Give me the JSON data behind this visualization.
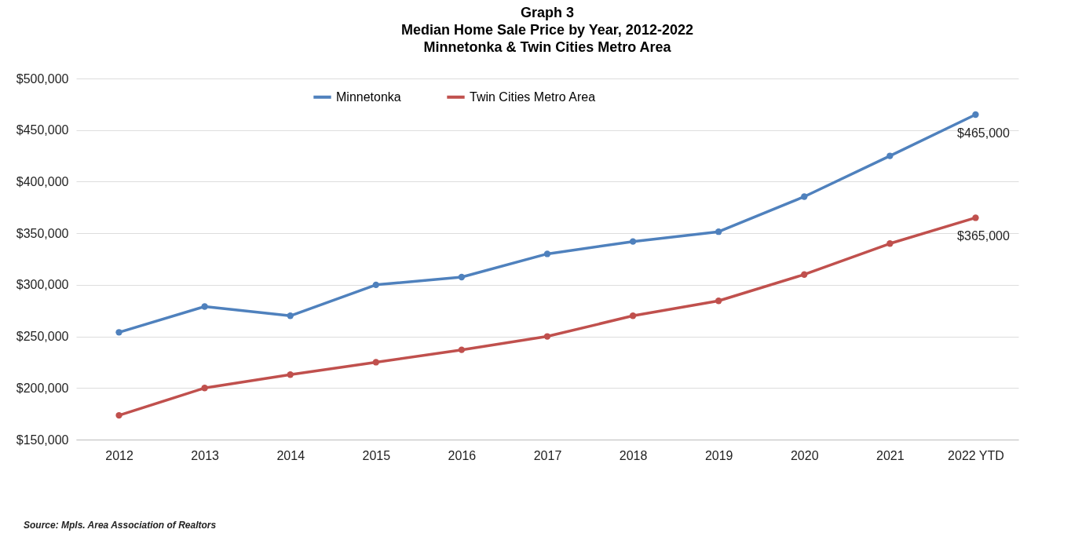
{
  "chart_data": {
    "type": "line",
    "title": "Graph 3\nMedian Home Sale Price by Year, 2012-2022\nMinnetonka & Twin Cities Metro Area",
    "categories": [
      "2012",
      "2013",
      "2014",
      "2015",
      "2016",
      "2017",
      "2018",
      "2019",
      "2020",
      "2021",
      "2022 YTD"
    ],
    "series": [
      {
        "name": "Minnetonka",
        "color": "#4f81bd",
        "values": [
          254000,
          279000,
          270000,
          300000,
          307500,
          330000,
          342000,
          351500,
          385500,
          425000,
          465000
        ],
        "value_labels": [
          null,
          null,
          null,
          null,
          null,
          null,
          null,
          null,
          null,
          null,
          "$465,000"
        ]
      },
      {
        "name": "Twin Cities Metro Area",
        "color": "#c0504d",
        "values": [
          173500,
          200000,
          213000,
          225000,
          237000,
          250000,
          270000,
          284500,
          310000,
          340000,
          365000
        ],
        "value_labels": [
          null,
          null,
          null,
          null,
          null,
          null,
          null,
          null,
          null,
          null,
          "$365,000"
        ]
      }
    ],
    "ylim": [
      150000,
      500000
    ],
    "yticks": [
      {
        "value": 150000,
        "label": "$150,000"
      },
      {
        "value": 200000,
        "label": "$200,000"
      },
      {
        "value": 250000,
        "label": "$250,000"
      },
      {
        "value": 300000,
        "label": "$300,000"
      },
      {
        "value": 350000,
        "label": "$350,000"
      },
      {
        "value": 400000,
        "label": "$400,000"
      },
      {
        "value": 450000,
        "label": "$450,000"
      },
      {
        "value": 500000,
        "label": "$500,000"
      }
    ],
    "grid": "y",
    "legend": "top",
    "marker": "circle",
    "line_style": "solid",
    "annotations": [
      "Source:  Mpls. Area Association of Realtors"
    ]
  }
}
